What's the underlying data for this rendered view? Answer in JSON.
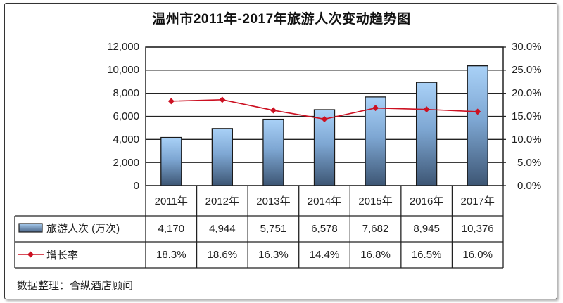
{
  "chart_data": {
    "type": "bar+line",
    "title": "温州市2011年-2017年旅游人次变动趋势图",
    "categories": [
      "2011年",
      "2012年",
      "2013年",
      "2014年",
      "2015年",
      "2016年",
      "2017年"
    ],
    "series": [
      {
        "name": "旅游人次（万次）",
        "type": "bar",
        "axis": "left",
        "values": [
          4170,
          4944,
          5751,
          6578,
          7682,
          8945,
          10376
        ],
        "labels": [
          "4,170",
          "4,944",
          "5,751",
          "6,578",
          "7,682",
          "8,945",
          "10,376"
        ],
        "color": "#4a6a93"
      },
      {
        "name": "增长率",
        "type": "line",
        "axis": "right",
        "values": [
          18.3,
          18.6,
          16.3,
          14.4,
          16.8,
          16.5,
          16.0
        ],
        "labels": [
          "18.3%",
          "18.6%",
          "16.3%",
          "14.4%",
          "16.8%",
          "16.5%",
          "16.0%"
        ],
        "color": "#cc1122"
      }
    ],
    "y_left": {
      "ticks": [
        "12,000",
        "10,000",
        "8,000",
        "6,000",
        "4,000",
        "2,000",
        "0"
      ],
      "range": [
        0,
        12000
      ]
    },
    "y_right": {
      "ticks": [
        "30.0%",
        "25.0%",
        "20.0%",
        "15.0%",
        "10.0%",
        "5.0%",
        "0.0%"
      ],
      "range": [
        0,
        30
      ]
    },
    "grid": true,
    "legend_position": "data-table",
    "data_table": true
  },
  "legend": {
    "bar_label": "旅游人次 (万次)",
    "line_label": "增长率"
  },
  "source": "数据整理：合纵酒店顾问"
}
